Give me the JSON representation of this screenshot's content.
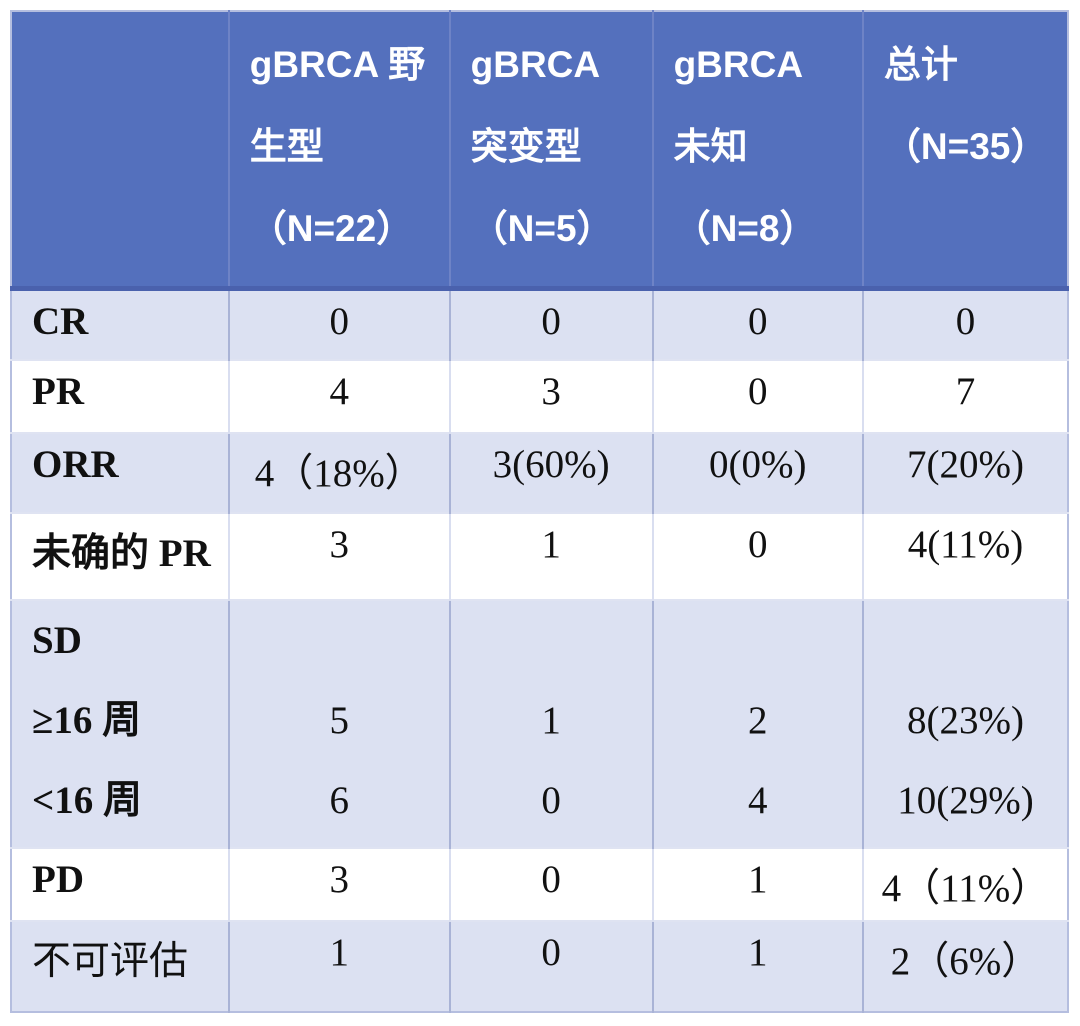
{
  "colors": {
    "header_bg": "#5470BD",
    "header_text": "#ffffff",
    "band_row_bg": "#DCE1F2",
    "plain_row_bg": "#ffffff",
    "header_rule": "#4a61ad",
    "grid_line": "#a9b3d6",
    "text": "#111111"
  },
  "header": {
    "corner": "",
    "cols": [
      {
        "l1": "gBRCA 野",
        "l2": "生型",
        "l3": "（N=22）"
      },
      {
        "l1": "gBRCA",
        "l2": "突变型",
        "l3": "（N=5）"
      },
      {
        "l1": "gBRCA",
        "l2": "未知",
        "l3": "（N=8）"
      },
      {
        "l1": "总计",
        "l2": "（N=35）",
        "l3": ""
      }
    ]
  },
  "chart_data": {
    "type": "table",
    "title": "",
    "columns": [
      "",
      "gBRCA 野生型（N=22）",
      "gBRCA 突变型（N=5）",
      "gBRCA 未知（N=8）",
      "总计（N=35）"
    ],
    "rows": [
      [
        "CR",
        "0",
        "0",
        "0",
        "0"
      ],
      [
        "PR",
        "4",
        "3",
        "0",
        "7"
      ],
      [
        "ORR",
        "4（18%）",
        "3(60%)",
        "0(0%)",
        "7(20%)"
      ],
      [
        "未确的 PR",
        "3",
        "1",
        "0",
        "4(11%)"
      ],
      [
        "SD",
        "",
        "",
        "",
        ""
      ],
      [
        "≥16 周",
        "5",
        "1",
        "2",
        "8(23%)"
      ],
      [
        "<16 周",
        "6",
        "0",
        "4",
        "10(29%)"
      ],
      [
        "PD",
        "3",
        "0",
        "1",
        "4（11%）"
      ],
      [
        "不可评估",
        "1",
        "0",
        "1",
        "2（6%）"
      ]
    ]
  }
}
